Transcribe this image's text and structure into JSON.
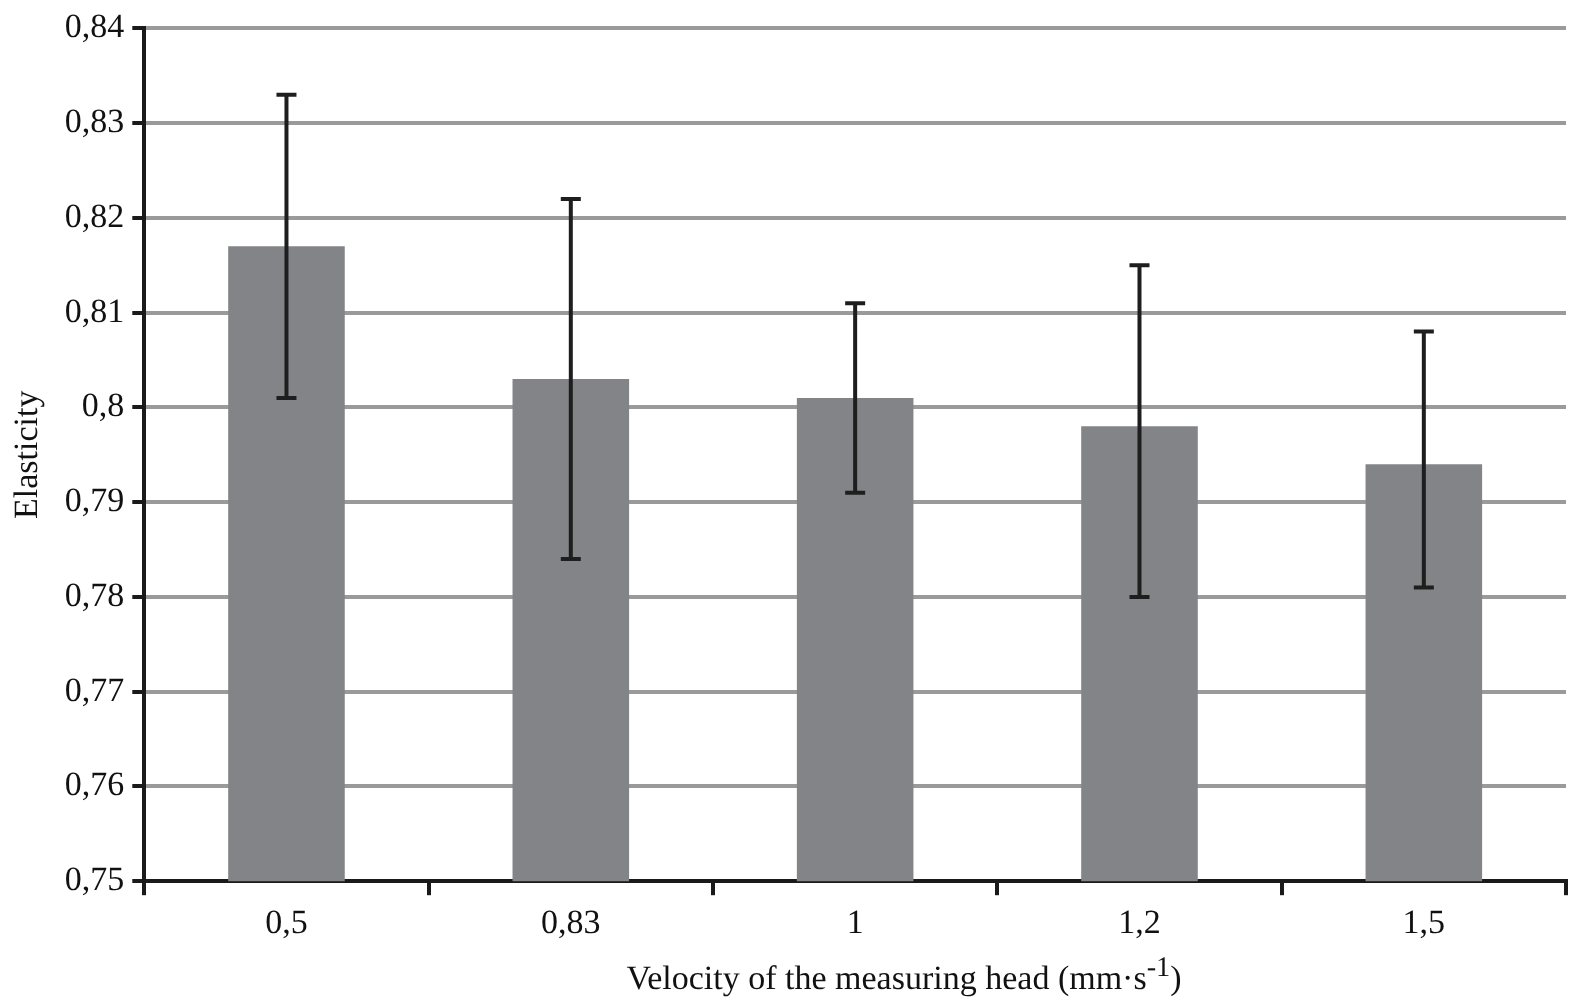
{
  "chart_data": {
    "type": "bar",
    "xlabel": "Velocity of the measuring head  (mm·s$^{-1}$)",
    "ylabel": "Elasticity",
    "categories": [
      "0,5",
      "0,83",
      "1",
      "1,2",
      "1,5"
    ],
    "values": [
      0.817,
      0.803,
      0.801,
      0.798,
      0.794
    ],
    "errors": [
      [
        0.801,
        0.833
      ],
      [
        0.784,
        0.822
      ],
      [
        0.791,
        0.811
      ],
      [
        0.78,
        0.815
      ],
      [
        0.781,
        0.808
      ]
    ],
    "color": "#838487",
    "ylim": [
      0.75,
      0.84
    ],
    "yticks": [
      {
        "value": 0.75,
        "label": "0,75"
      },
      {
        "value": 0.76,
        "label": "0,76"
      },
      {
        "value": 0.77,
        "label": "0,77"
      },
      {
        "value": 0.78,
        "label": "0,78"
      },
      {
        "value": 0.79,
        "label": "0,79"
      },
      {
        "value": 0.8,
        "label": "0,8"
      },
      {
        "value": 0.81,
        "label": "0,81"
      },
      {
        "value": 0.82,
        "label": "0,82"
      },
      {
        "value": 0.83,
        "label": "0,83"
      },
      {
        "value": 0.84,
        "label": "0,84"
      }
    ],
    "grid": "y",
    "legend": false
  }
}
